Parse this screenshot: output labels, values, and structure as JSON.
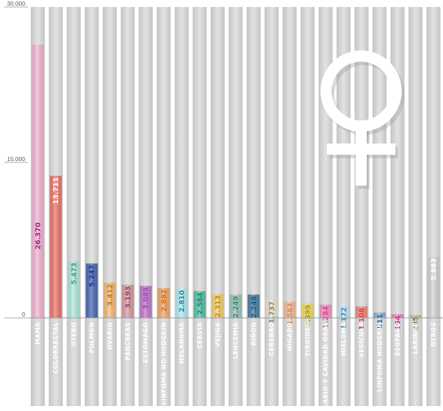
{
  "chart_data": {
    "type": "bar",
    "title": "",
    "xlabel": "",
    "ylabel": "",
    "ylim": [
      0,
      30000
    ],
    "yticks": [
      "0",
      "15.000",
      "30.000"
    ],
    "ytick_values": [
      0,
      15000,
      30000
    ],
    "grid": false,
    "legend": "none",
    "categories": [
      "MAMA",
      "COLORRECTAL",
      "ÚTERO",
      "PULMÓN",
      "OVARIO",
      "PÁNCREAS",
      "ESTÓMAGO",
      "LINFOMA NO HODGKIN",
      "MELANOMA",
      "CÉRVIX",
      "VEJIGA",
      "LEUCEMIA",
      "RIÑÓN",
      "CEREBRO",
      "HÍGADO",
      "TIROIDES",
      "LABIO Y CAVIDAD ORAL",
      "MIELOMA",
      "VESÍCULA",
      "LINFOMA HODGKIN",
      "ESOFAGO",
      "LARINGE",
      "OTROS"
    ],
    "values": [
      26370,
      13711,
      5473,
      5247,
      3412,
      3193,
      3089,
      2882,
      2810,
      2584,
      2313,
      2249,
      2248,
      1737,
      1583,
      1399,
      1284,
      1172,
      1108,
      511,
      354,
      285,
      5883
    ],
    "value_labels": [
      "26.370",
      "13.711",
      "5.473",
      "5.247",
      "3.412",
      "3.193",
      "3.089",
      "2.882",
      "2.810",
      "2.584",
      "2.313",
      "2.249",
      "2.248",
      "1.737",
      "1.583",
      "1.399",
      "1.284",
      "1.172",
      "1.108",
      "511",
      "354",
      "285",
      "5.883"
    ],
    "colors": [
      "#f8b8d8",
      "#ee7b70",
      "#b6ece0",
      "#4f6cb6",
      "#f5c082",
      "#d9a1a8",
      "#c27ecf",
      "#f6ab70",
      "#b6eef4",
      "#5fc4ad",
      "#f8d57e",
      "#9fcbc1",
      "#4d86a6",
      "#ece9d5",
      "#f7c1a4",
      "#f5e06e",
      "#f59ac4",
      "#c9eaf7",
      "#f09088",
      "#8bb4d2",
      "#f08ac0",
      "#c9c79e",
      "#d8d8d8"
    ],
    "label_colors": [
      "#9a2a86",
      "#ffffff",
      "#4d9c8a",
      "#1b3c8e",
      "#c47a18",
      "#a64062",
      "#a24ab6",
      "#d47524",
      "#2c8aa4",
      "#1f8a74",
      "#cc8a10",
      "#3e8a7a",
      "#1f5a80",
      "#8a8a6a",
      "#d98760",
      "#b09a10",
      "#e0408e",
      "#3a8ab4",
      "#e04040",
      "#2a6aa6",
      "#d0208e",
      "#7a7640",
      "#ffffff"
    ],
    "symbol": "female-symbol-icon"
  }
}
